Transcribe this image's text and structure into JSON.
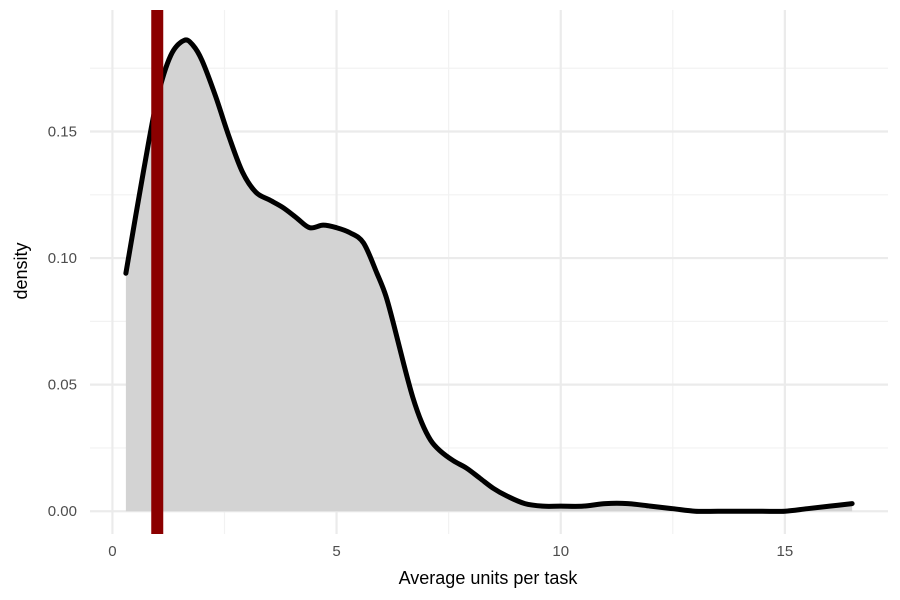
{
  "chart_data": {
    "type": "area",
    "xlabel": "Average units per task",
    "ylabel": "density",
    "xlim": [
      -0.5,
      17.3
    ],
    "ylim": [
      -0.009,
      0.198
    ],
    "x_ticks": [
      0,
      5,
      10,
      15
    ],
    "x_tick_labels": [
      "0",
      "5",
      "10",
      "15"
    ],
    "y_ticks": [
      0.0,
      0.05,
      0.1,
      0.15
    ],
    "y_tick_labels": [
      "0.00",
      "0.05",
      "0.10",
      "0.15"
    ],
    "grid": true,
    "fill_color": "#d3d3d3",
    "line_color": "#000000",
    "vline": {
      "x": 1.0,
      "color": "#8b0000"
    },
    "series": [
      {
        "x": [
          0.3,
          0.7,
          1.0,
          1.3,
          1.6,
          1.8,
          2.0,
          2.3,
          2.6,
          2.9,
          3.2,
          3.5,
          3.8,
          4.1,
          4.4,
          4.7,
          5.0,
          5.3,
          5.6,
          5.9,
          6.1,
          6.3,
          6.5,
          6.7,
          6.9,
          7.1,
          7.3,
          7.6,
          7.9,
          8.2,
          8.5,
          8.8,
          9.2,
          9.6,
          10.0,
          10.5,
          11.0,
          11.5,
          12.0,
          12.5,
          13.0,
          13.5,
          14.0,
          14.5,
          15.0,
          15.5,
          16.0,
          16.5
        ],
        "y": [
          0.094,
          0.135,
          0.163,
          0.18,
          0.186,
          0.184,
          0.178,
          0.164,
          0.148,
          0.134,
          0.126,
          0.123,
          0.12,
          0.116,
          0.112,
          0.113,
          0.112,
          0.11,
          0.106,
          0.094,
          0.085,
          0.072,
          0.058,
          0.045,
          0.035,
          0.028,
          0.024,
          0.02,
          0.017,
          0.013,
          0.009,
          0.006,
          0.003,
          0.002,
          0.002,
          0.002,
          0.003,
          0.003,
          0.002,
          0.001,
          0.0,
          0.0,
          0.0,
          0.0,
          0.0,
          0.001,
          0.002,
          0.003
        ]
      }
    ]
  }
}
